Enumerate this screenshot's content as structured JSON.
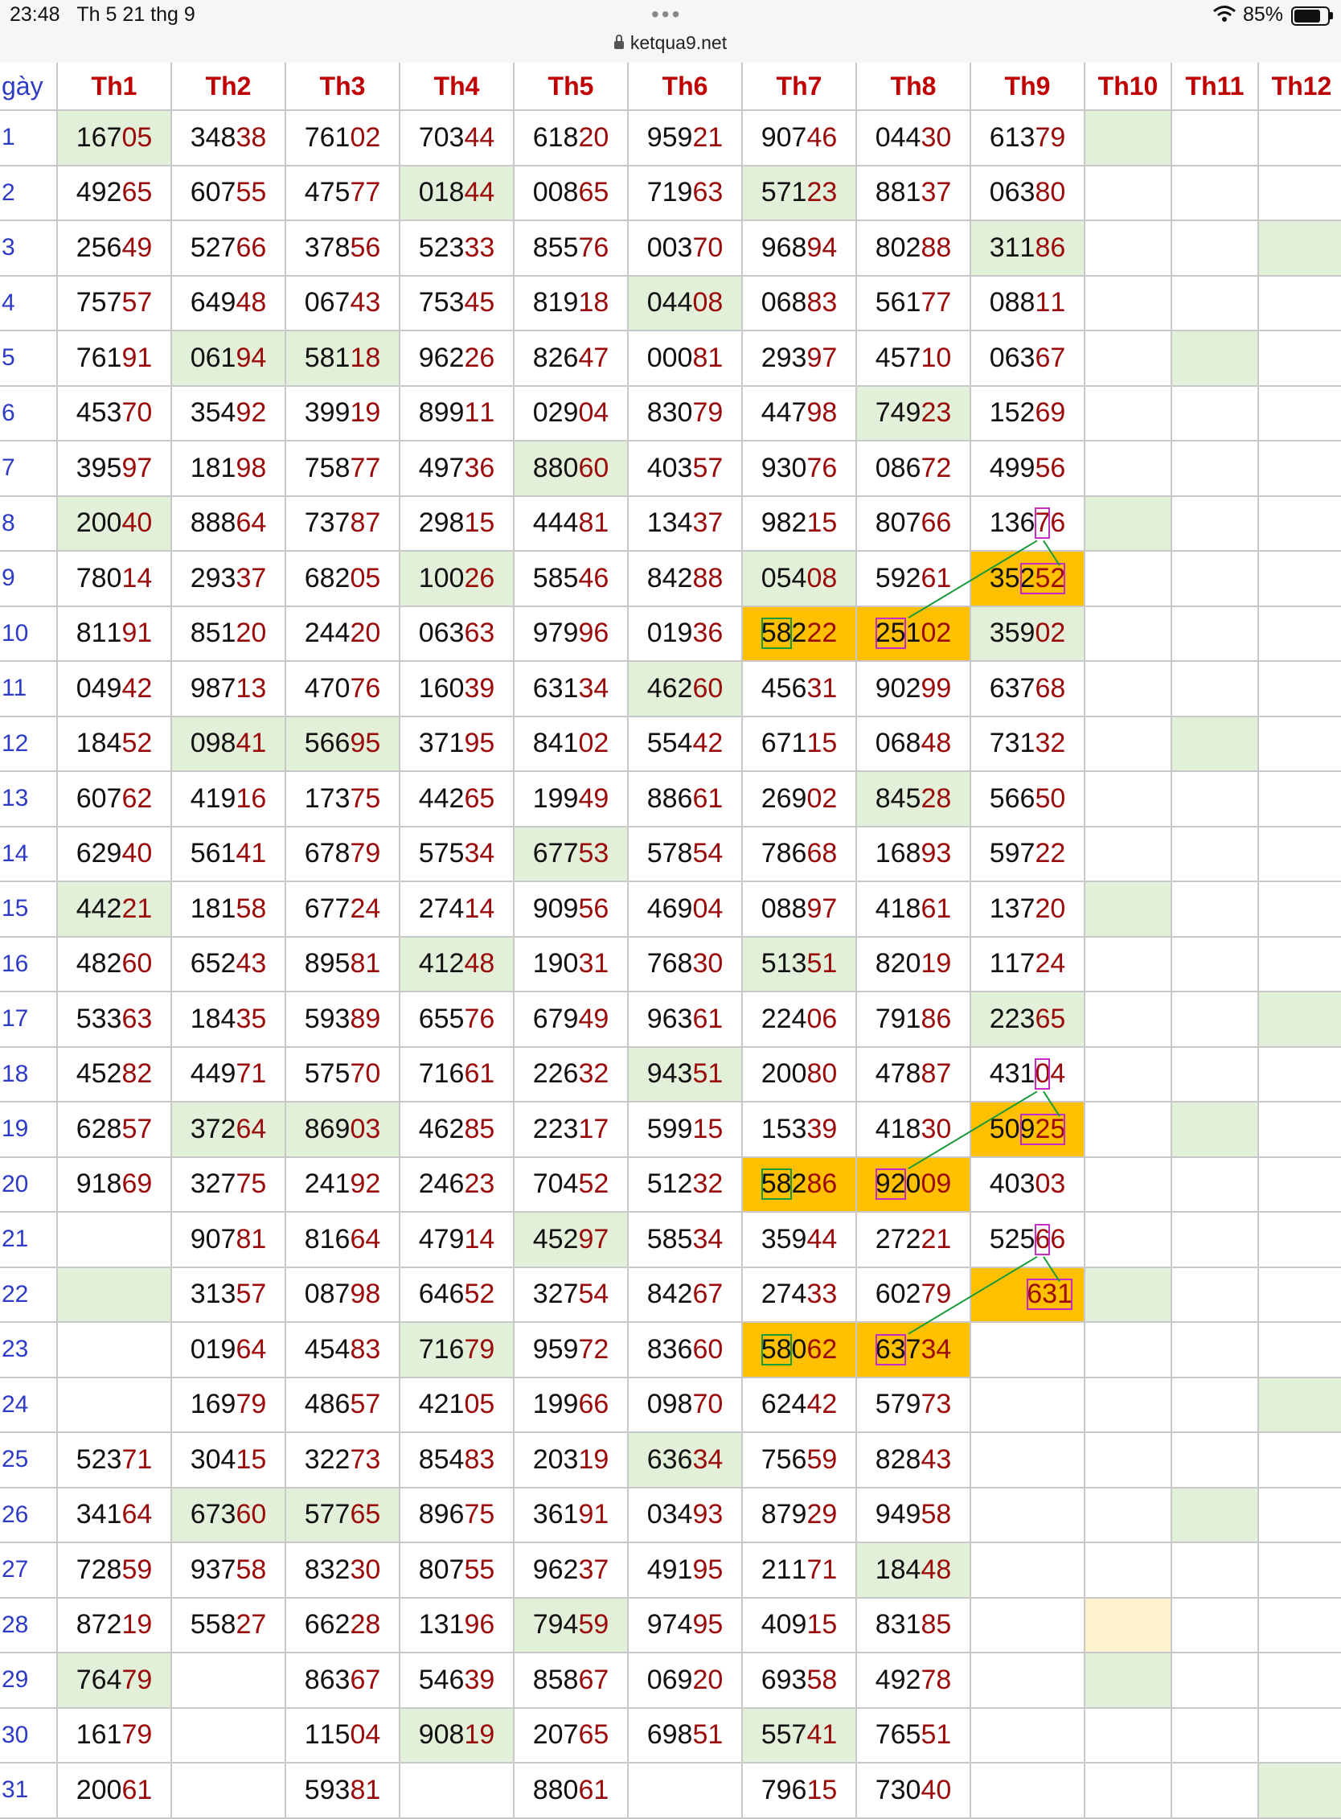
{
  "status_bar": {
    "time": "23:48",
    "date": "Th 5 21 thg 9",
    "battery": "85%",
    "battery_level": 0.85,
    "url": "ketqua9.net",
    "icons": [
      "wifi-icon",
      "battery-icon",
      "lock-icon",
      "more-dots-icon"
    ]
  },
  "table": {
    "day_header": "gày",
    "months": [
      "Th1",
      "Th2",
      "Th3",
      "Th4",
      "Th5",
      "Th6",
      "Th7",
      "Th8",
      "Th9",
      "Th10",
      "Th11",
      "Th12"
    ],
    "days": [
      "1",
      "2",
      "3",
      "4",
      "5",
      "6",
      "7",
      "8",
      "9",
      "10",
      "11",
      "12",
      "13",
      "14",
      "15",
      "16",
      "17",
      "18",
      "19",
      "20",
      "21",
      "22",
      "23",
      "24",
      "25",
      "26",
      "27",
      "28",
      "29",
      "30",
      "31"
    ],
    "rows": [
      [
        "16705",
        "34838",
        "76102",
        "70344",
        "61820",
        "95921",
        "90746",
        "04430",
        "61379",
        "",
        "",
        ""
      ],
      [
        "49265",
        "60755",
        "47577",
        "01844",
        "00865",
        "71963",
        "57123",
        "88137",
        "06380",
        "",
        "",
        ""
      ],
      [
        "25649",
        "52766",
        "37856",
        "52333",
        "85576",
        "00370",
        "96894",
        "80288",
        "31186",
        "",
        "",
        ""
      ],
      [
        "75757",
        "64948",
        "06743",
        "75345",
        "81918",
        "04408",
        "06883",
        "56177",
        "08811",
        "",
        "",
        ""
      ],
      [
        "76191",
        "06194",
        "58118",
        "96226",
        "82647",
        "00081",
        "29397",
        "45710",
        "06367",
        "",
        "",
        ""
      ],
      [
        "45370",
        "35492",
        "39919",
        "89911",
        "02904",
        "83079",
        "44798",
        "74923",
        "15269",
        "",
        "",
        ""
      ],
      [
        "39597",
        "18198",
        "75877",
        "49736",
        "88060",
        "40357",
        "93076",
        "08672",
        "49956",
        "",
        "",
        ""
      ],
      [
        "20040",
        "88864",
        "73787",
        "29815",
        "44481",
        "13437",
        "98215",
        "80766",
        "13676",
        "",
        "",
        ""
      ],
      [
        "78014",
        "29337",
        "68205",
        "10026",
        "58546",
        "84288",
        "05408",
        "59261",
        "35252",
        "",
        "",
        ""
      ],
      [
        "81191",
        "85120",
        "24420",
        "06363",
        "97996",
        "01936",
        "58222",
        "25102",
        "35902",
        "",
        "",
        ""
      ],
      [
        "04942",
        "98713",
        "47076",
        "16039",
        "63134",
        "46260",
        "45631",
        "90299",
        "63768",
        "",
        "",
        ""
      ],
      [
        "18452",
        "09841",
        "56695",
        "37195",
        "84102",
        "55442",
        "67115",
        "06848",
        "73132",
        "",
        "",
        ""
      ],
      [
        "60762",
        "41916",
        "17375",
        "44265",
        "19949",
        "88661",
        "26902",
        "84528",
        "56650",
        "",
        "",
        ""
      ],
      [
        "62940",
        "56141",
        "67879",
        "57534",
        "67753",
        "57854",
        "78668",
        "16893",
        "59722",
        "",
        "",
        ""
      ],
      [
        "44221",
        "18158",
        "67724",
        "27414",
        "90956",
        "46904",
        "08897",
        "41861",
        "13720",
        "",
        "",
        ""
      ],
      [
        "48260",
        "65243",
        "89581",
        "41248",
        "19031",
        "76830",
        "51351",
        "82019",
        "11724",
        "",
        "",
        ""
      ],
      [
        "53363",
        "18435",
        "59389",
        "65576",
        "67949",
        "96361",
        "22406",
        "79186",
        "22365",
        "",
        "",
        ""
      ],
      [
        "45282",
        "44971",
        "57570",
        "71661",
        "22632",
        "94351",
        "20080",
        "47887",
        "43104",
        "",
        "",
        ""
      ],
      [
        "62857",
        "37264",
        "86903",
        "46285",
        "22317",
        "59915",
        "15339",
        "41830",
        "50925",
        "",
        "",
        ""
      ],
      [
        "91869",
        "32775",
        "24192",
        "24623",
        "70452",
        "51232",
        "58286",
        "92009",
        "40303",
        "",
        "",
        ""
      ],
      [
        "",
        "90781",
        "81664",
        "47914",
        "45297",
        "58534",
        "35944",
        "27221",
        "52566",
        "",
        "",
        ""
      ],
      [
        "",
        "31357",
        "08798",
        "64652",
        "32754",
        "84267",
        "27433",
        "60279",
        "631",
        "",
        "",
        ""
      ],
      [
        "",
        "01964",
        "45483",
        "71679",
        "95972",
        "83660",
        "58062",
        "63734",
        "",
        "",
        "",
        ""
      ],
      [
        "",
        "16979",
        "48657",
        "42105",
        "19966",
        "09870",
        "62442",
        "57973",
        "",
        "",
        "",
        ""
      ],
      [
        "52371",
        "30415",
        "32273",
        "85483",
        "20319",
        "63634",
        "75659",
        "82843",
        "",
        "",
        "",
        ""
      ],
      [
        "34164",
        "67360",
        "57765",
        "89675",
        "36191",
        "03493",
        "87929",
        "94958",
        "",
        "",
        "",
        ""
      ],
      [
        "72859",
        "93758",
        "83230",
        "80755",
        "96237",
        "49195",
        "21171",
        "18448",
        "",
        "",
        "",
        ""
      ],
      [
        "87219",
        "55827",
        "66228",
        "13196",
        "79459",
        "97495",
        "40915",
        "83185",
        "",
        "",
        "",
        ""
      ],
      [
        "76479",
        "",
        "86367",
        "54639",
        "85867",
        "06920",
        "69358",
        "49278",
        "",
        "",
        "",
        ""
      ],
      [
        "16179",
        "",
        "11504",
        "90819",
        "20765",
        "69851",
        "55741",
        "76551",
        "",
        "",
        "",
        ""
      ],
      [
        "20061",
        "",
        "59381",
        "",
        "88061",
        "",
        "79615",
        "73040",
        "",
        "",
        "",
        ""
      ]
    ]
  },
  "colors": {
    "header_text": "#c00000",
    "day_text": "#2e3bc6",
    "tail_digits": "#9b0b0b",
    "highlight_green": "#e2f0d9",
    "highlight_orange": "#ffc000",
    "highlight_yellow": "#fff2cc",
    "marker_magenta": "#c62cc4",
    "marker_green": "#1a9a3a"
  }
}
